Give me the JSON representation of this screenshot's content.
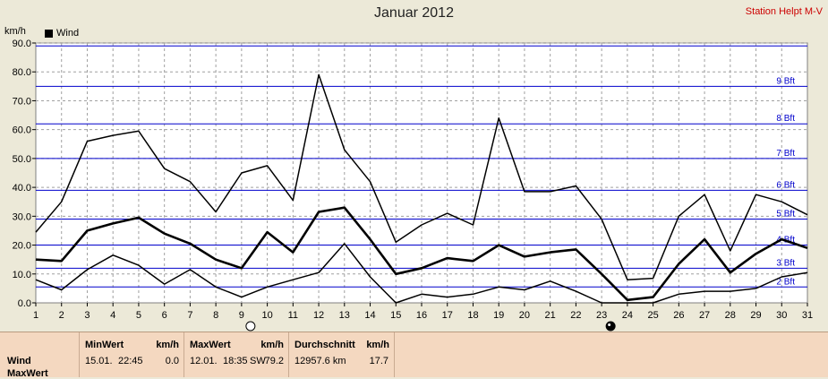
{
  "header": {
    "title": "Januar 2012",
    "station": "Station Helpt M-V",
    "unit": "km/h",
    "legend": "Wind"
  },
  "colors": {
    "max": "#000000",
    "avg": "#000000",
    "min": "#000000",
    "bft": "#0000cc",
    "bg": "#ffffff"
  },
  "chart_data": {
    "type": "line",
    "title": "Januar 2012",
    "ylabel": "km/h",
    "ylim": [
      0,
      90
    ],
    "yticks": [
      "0.0",
      "10.0",
      "20.0",
      "30.0",
      "40.0",
      "50.0",
      "60.0",
      "70.0",
      "80.0",
      "90.0"
    ],
    "x": [
      1,
      2,
      3,
      4,
      5,
      6,
      7,
      8,
      9,
      10,
      11,
      12,
      13,
      14,
      15,
      16,
      17,
      18,
      19,
      20,
      21,
      22,
      23,
      24,
      25,
      26,
      27,
      28,
      29,
      30,
      31
    ],
    "legend": "Wind",
    "grid": true,
    "series": [
      {
        "values": [
          24.5,
          35.0,
          56.0,
          58.0,
          59.5,
          46.5,
          42.0,
          31.5,
          45.0,
          47.5,
          35.5,
          79.0,
          53.0,
          42.0,
          21.0,
          27.0,
          31.0,
          27.0,
          64.0,
          38.5,
          38.5,
          40.5,
          29.0,
          8.0,
          8.5,
          30.0,
          37.5,
          18.0,
          37.5,
          35.0,
          30.5
        ]
      },
      {
        "values": [
          15.0,
          14.5,
          25.0,
          27.5,
          29.5,
          24.0,
          20.5,
          15.0,
          12.0,
          24.5,
          17.5,
          31.5,
          33.0,
          22.0,
          10.0,
          12.0,
          15.5,
          14.5,
          20.0,
          16.0,
          17.5,
          18.5,
          10.0,
          1.0,
          2.0,
          13.5,
          22.0,
          10.5,
          17.0,
          22.0,
          19.0
        ]
      },
      {
        "values": [
          8.0,
          4.5,
          11.5,
          16.5,
          13.0,
          6.5,
          11.5,
          5.5,
          2.0,
          5.5,
          8.0,
          10.5,
          20.5,
          9.0,
          0.0,
          3.0,
          2.0,
          3.0,
          5.5,
          4.5,
          7.5,
          4.0,
          0.0,
          0.0,
          0.0,
          3.0,
          4.0,
          4.0,
          5.0,
          9.0,
          10.5
        ]
      }
    ],
    "beaufort": [
      {
        "label": "2 Bft",
        "value": 5.5
      },
      {
        "label": "3 Bft",
        "value": 12.0
      },
      {
        "label": "4 Bft",
        "value": 20.0
      },
      {
        "label": "5 Bft",
        "value": 29.0
      },
      {
        "label": "6 Bft",
        "value": 39.0
      },
      {
        "label": "7 Bft",
        "value": 50.0
      },
      {
        "label": "8 Bft",
        "value": 62.0
      },
      {
        "label": "9 Bft",
        "value": 75.0
      },
      {
        "label": "",
        "value": 89.0
      }
    ],
    "moon": [
      {
        "day": 9,
        "phase": "full"
      },
      {
        "day": 23,
        "phase": "new"
      }
    ]
  },
  "summary": {
    "row_label": "Wind",
    "row_label2": "MaxWert",
    "min": {
      "header": "MinWert",
      "unit": "km/h",
      "date": "15.01.",
      "time": "22:45",
      "value": "0.0"
    },
    "max": {
      "header": "MaxWert",
      "unit": "km/h",
      "date": "12.01.",
      "time": "18:35",
      "dir": "SW",
      "value": "79.2"
    },
    "avg": {
      "header": "Durchschnitt",
      "unit": "km/h",
      "distance": "12957.6 km",
      "value": "17.7"
    }
  }
}
